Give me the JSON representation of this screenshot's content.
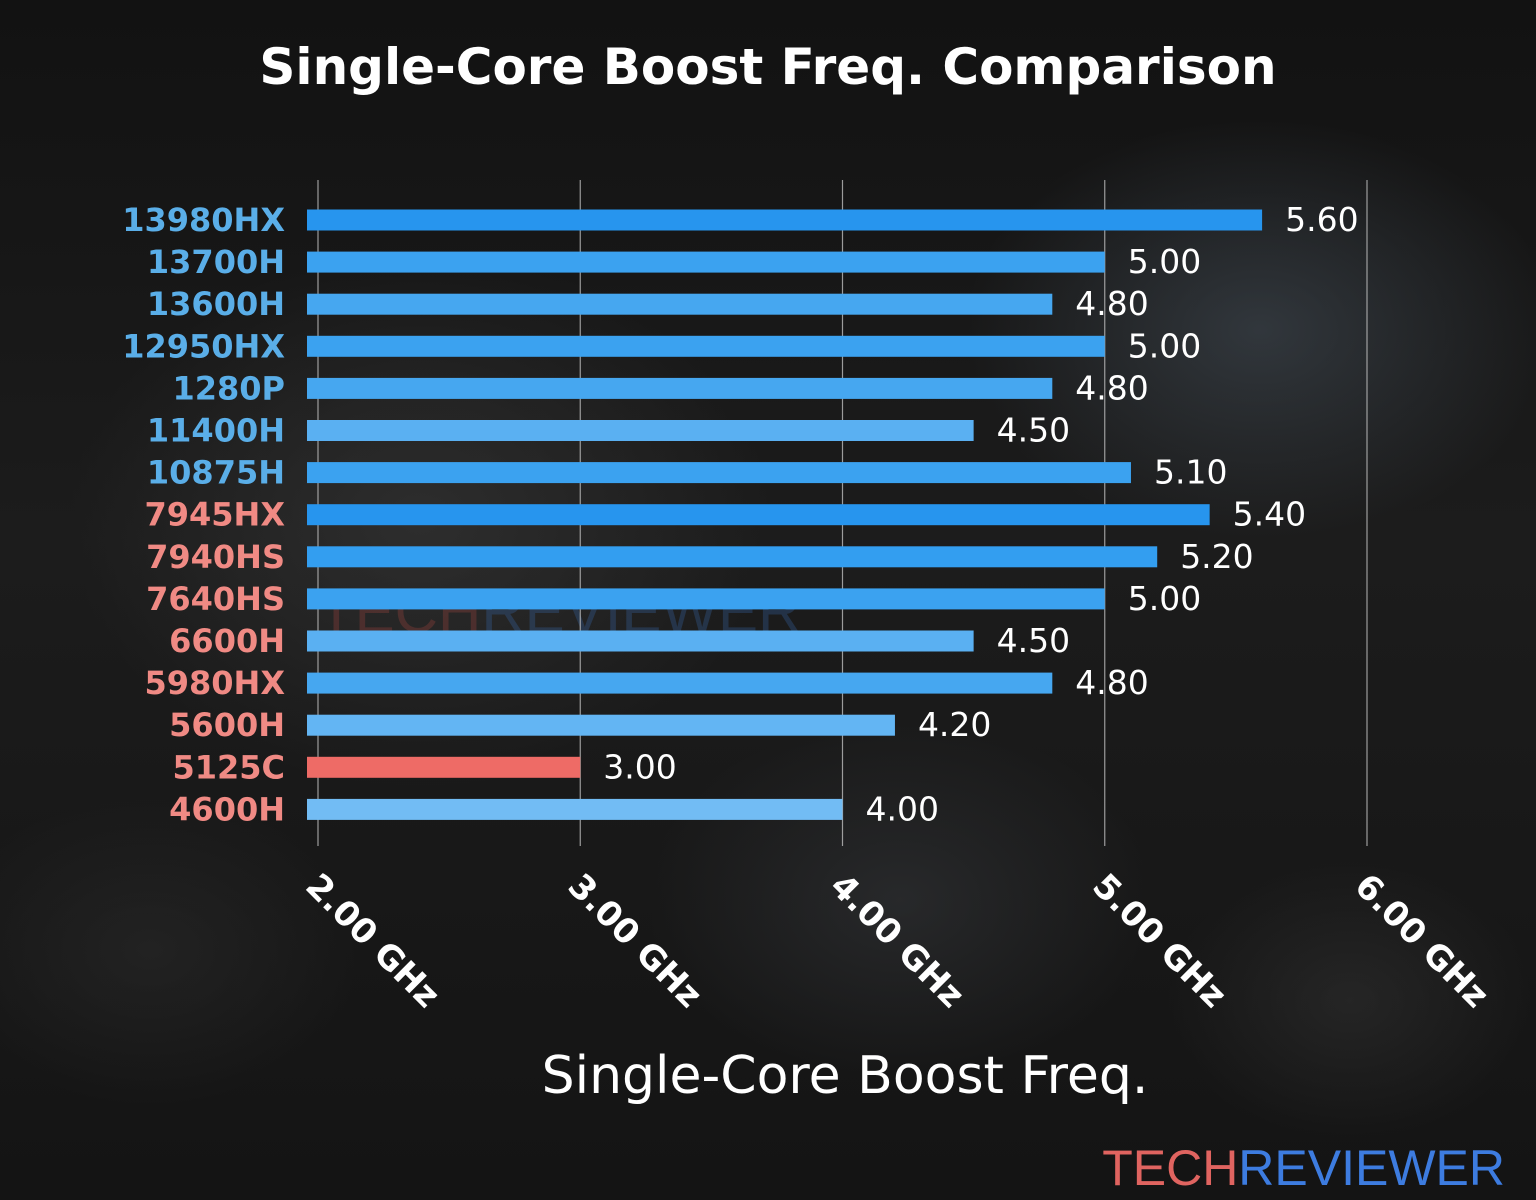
{
  "chart_data": {
    "type": "bar",
    "orientation": "horizontal",
    "title": "Single-Core Boost Freq. Comparison",
    "xlabel": "Single-Core Boost Freq.",
    "ylabel": "",
    "xlim": [
      2.0,
      6.0
    ],
    "x_ticks": [
      2.0,
      3.0,
      4.0,
      5.0,
      6.0
    ],
    "x_tick_labels": [
      "2.00 GHz",
      "3.00 GHz",
      "4.00 GHz",
      "5.00 GHz",
      "6.00 GHz"
    ],
    "grid": "vertical",
    "categories": [
      "13980HX",
      "13700H",
      "13600H",
      "12950HX",
      "1280P",
      "11400H",
      "10875H",
      "7945HX",
      "7940HS",
      "7640HS",
      "6600H",
      "5980HX",
      "5600H",
      "5125C",
      "4600H"
    ],
    "values": [
      5.6,
      5.0,
      4.8,
      5.0,
      4.8,
      4.5,
      5.1,
      5.4,
      5.2,
      5.0,
      4.5,
      4.8,
      4.2,
      3.0,
      4.0
    ],
    "value_labels": [
      "5.60",
      "5.00",
      "4.80",
      "5.00",
      "4.80",
      "4.50",
      "5.10",
      "5.40",
      "5.20",
      "5.00",
      "4.50",
      "4.80",
      "4.20",
      "3.00",
      "4.00"
    ],
    "label_colors": [
      "#5aaee8",
      "#5aaee8",
      "#5aaee8",
      "#5aaee8",
      "#5aaee8",
      "#5aaee8",
      "#5aaee8",
      "#f08a84",
      "#f08a84",
      "#f08a84",
      "#f08a84",
      "#f08a84",
      "#f08a84",
      "#f08a84",
      "#f08a84"
    ],
    "bar_colors": [
      "#2795ee",
      "#3ba2f0",
      "#46a7f0",
      "#3ba2f0",
      "#46a7f0",
      "#5ab0f2",
      "#3ba2f0",
      "#2795ee",
      "#339ef0",
      "#3ba2f0",
      "#5ab0f2",
      "#46a7f0",
      "#63b5f3",
      "#ee6b66",
      "#72bcf4"
    ]
  },
  "watermark": {
    "part1": "TECH",
    "part2": "REVIEWER"
  },
  "logo": {
    "part1": "TECH",
    "part2": "REVIEWER"
  },
  "colors": {
    "tech_red": "#e06460",
    "reviewer_blue": "#3d7ce0",
    "text": "#ffffff",
    "grid": "#c8c8c8"
  }
}
